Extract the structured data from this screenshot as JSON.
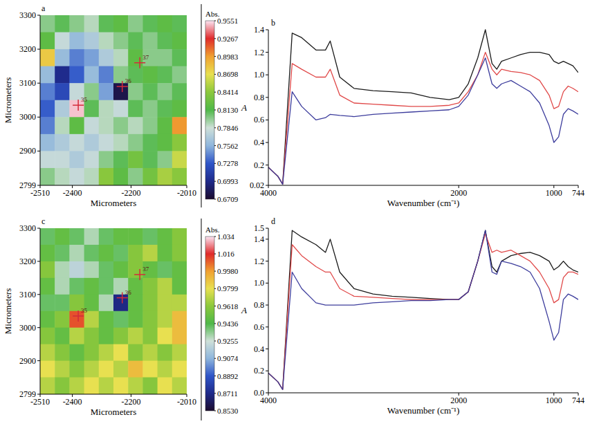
{
  "chart_data": [
    {
      "type": "heatmap",
      "title": "a",
      "xlabel": "Micrometers",
      "ylabel": "Micrometers",
      "xlim": [
        -2510,
        -2010
      ],
      "xticks": [
        -2510,
        -2400,
        -2200,
        -2010
      ],
      "ylim": [
        2799,
        3300
      ],
      "yticks": [
        2799,
        2900,
        3000,
        3100,
        3200,
        3300
      ],
      "x_edges": [
        -2510,
        -2460,
        -2410,
        -2360,
        -2310,
        -2260,
        -2210,
        -2160,
        -2110,
        -2060,
        -2010
      ],
      "y_edges": [
        3300,
        3250,
        3200,
        3150,
        3100,
        3050,
        3000,
        2950,
        2900,
        2850,
        2799
      ],
      "cells": [
        [
          0.8,
          0.81,
          0.8,
          0.79,
          0.81,
          0.82,
          0.8,
          0.81,
          0.82,
          0.81
        ],
        [
          0.82,
          0.78,
          0.76,
          0.77,
          0.79,
          0.8,
          0.81,
          0.8,
          0.81,
          0.82
        ],
        [
          0.88,
          0.76,
          0.74,
          0.75,
          0.77,
          0.79,
          0.82,
          0.8,
          0.8,
          0.81
        ],
        [
          0.76,
          0.7,
          0.73,
          0.76,
          0.74,
          0.8,
          0.81,
          0.82,
          0.81,
          0.8
        ],
        [
          0.74,
          0.72,
          0.78,
          0.8,
          0.75,
          0.68,
          0.8,
          0.81,
          0.8,
          0.81
        ],
        [
          0.73,
          0.77,
          0.95,
          0.81,
          0.79,
          0.78,
          0.81,
          0.8,
          0.81,
          0.82
        ],
        [
          0.74,
          0.79,
          0.82,
          0.78,
          0.79,
          0.8,
          0.79,
          0.8,
          0.82,
          0.9
        ],
        [
          0.76,
          0.77,
          0.78,
          0.77,
          0.78,
          0.79,
          0.8,
          0.81,
          0.82,
          0.84
        ],
        [
          0.78,
          0.78,
          0.77,
          0.78,
          0.8,
          0.81,
          0.83,
          0.81,
          0.8,
          0.86
        ],
        [
          0.8,
          0.79,
          0.78,
          0.79,
          0.84,
          0.82,
          0.8,
          0.83,
          0.85,
          0.84
        ]
      ],
      "markers": [
        {
          "label": "35",
          "x": -2380,
          "y": 3035
        },
        {
          "label": "36",
          "x": -2230,
          "y": 3090
        },
        {
          "label": "37",
          "x": -2170,
          "y": 3160
        }
      ],
      "colorbar": {
        "title": "Abs.",
        "range": [
          0.6709,
          0.9551
        ],
        "ticks": [
          0.6709,
          0.6993,
          0.7278,
          0.7562,
          0.7846,
          {
            "value": 0.813,
            "label": "0.8130"
          },
          0.8414,
          0.8698,
          0.8983,
          0.9267,
          0.9551
        ],
        "colors": [
          "#1c0c2e",
          "#1f2a8a",
          "#2f55c8",
          "#8fb6dc",
          "#cfe0d8",
          "#4fb848",
          "#8cc83c",
          "#e8e050",
          "#f0a030",
          "#e02a2a",
          "#fbe4f2"
        ]
      }
    },
    {
      "type": "line",
      "title": "b",
      "xlabel": "Wavenumber (cm⁻¹)",
      "ylabel": "A",
      "xlim": [
        4000,
        744
      ],
      "xticks": [
        4000,
        2000,
        1000,
        744
      ],
      "ylim": [
        0.02,
        1.4
      ],
      "yticks": [
        0.02,
        0.2,
        0.4,
        0.6,
        0.8,
        {
          "value": 1,
          "label": "1.0"
        },
        1.2,
        1.4
      ],
      "x": [
        4000,
        3900,
        3850,
        3750,
        3650,
        3500,
        3400,
        3350,
        3250,
        3100,
        2900,
        2700,
        2500,
        2300,
        2100,
        2000,
        1900,
        1800,
        1720,
        1650,
        1600,
        1550,
        1450,
        1350,
        1250,
        1150,
        1050,
        1000,
        950,
        900,
        850,
        800,
        744
      ],
      "series": [
        {
          "color": "#1a1a1a",
          "values": [
            0.18,
            0.1,
            0.03,
            1.37,
            1.33,
            1.22,
            1.22,
            1.3,
            0.98,
            0.88,
            0.86,
            0.85,
            0.84,
            0.8,
            0.78,
            0.8,
            0.92,
            1.15,
            1.4,
            1.1,
            1.05,
            1.12,
            1.15,
            1.18,
            1.2,
            1.2,
            1.18,
            1.12,
            1.1,
            1.12,
            1.1,
            1.08,
            1.02
          ]
        },
        {
          "color": "#e04848",
          "values": [
            0.18,
            0.1,
            0.03,
            1.1,
            1.05,
            0.98,
            0.98,
            1.05,
            0.82,
            0.75,
            0.74,
            0.73,
            0.72,
            0.72,
            0.73,
            0.75,
            0.85,
            1.0,
            1.2,
            1.05,
            1.0,
            1.05,
            1.03,
            1.02,
            1.0,
            0.95,
            0.82,
            0.7,
            0.72,
            0.85,
            0.9,
            0.88,
            0.85
          ]
        },
        {
          "color": "#3c3c9c",
          "values": [
            0.18,
            0.1,
            0.03,
            0.85,
            0.72,
            0.6,
            0.62,
            0.65,
            0.64,
            0.63,
            0.65,
            0.66,
            0.67,
            0.68,
            0.69,
            0.72,
            0.82,
            1.0,
            1.15,
            0.92,
            0.88,
            0.92,
            0.95,
            0.9,
            0.85,
            0.75,
            0.55,
            0.4,
            0.45,
            0.65,
            0.7,
            0.68,
            0.65
          ]
        }
      ]
    },
    {
      "type": "heatmap",
      "title": "c",
      "xlabel": "Micrometers",
      "ylabel": "Micrometers",
      "xlim": [
        -2510,
        -2010
      ],
      "xticks": [
        -2510,
        -2400,
        -2200,
        -2010
      ],
      "ylim": [
        2799,
        3300
      ],
      "yticks": [
        2799,
        2900,
        3000,
        3100,
        3200,
        3300
      ],
      "x_edges": [
        -2510,
        -2460,
        -2410,
        -2360,
        -2310,
        -2260,
        -2210,
        -2160,
        -2110,
        -2060,
        -2010
      ],
      "y_edges": [
        3300,
        3250,
        3200,
        3150,
        3100,
        3050,
        3000,
        2950,
        2900,
        2850,
        2799
      ],
      "cells": [
        [
          0.94,
          0.95,
          0.94,
          0.93,
          0.94,
          0.95,
          0.95,
          0.94,
          0.95,
          0.96
        ],
        [
          0.95,
          0.94,
          0.93,
          0.94,
          0.95,
          0.94,
          0.96,
          0.97,
          0.95,
          0.96
        ],
        [
          0.96,
          0.93,
          0.92,
          0.93,
          0.94,
          0.95,
          0.96,
          0.95,
          0.94,
          0.95
        ],
        [
          0.95,
          0.93,
          0.94,
          0.95,
          0.94,
          0.93,
          0.95,
          0.96,
          0.97,
          0.95
        ],
        [
          0.94,
          0.94,
          0.96,
          0.95,
          0.93,
          0.87,
          0.95,
          0.96,
          0.97,
          0.97
        ],
        [
          0.95,
          0.96,
          1.01,
          0.97,
          0.95,
          0.94,
          0.95,
          0.96,
          0.97,
          0.99
        ],
        [
          0.96,
          0.95,
          0.97,
          0.96,
          0.95,
          0.96,
          0.97,
          0.96,
          0.98,
          0.99
        ],
        [
          0.97,
          0.96,
          0.95,
          0.96,
          0.97,
          0.98,
          0.96,
          0.97,
          0.96,
          0.97
        ],
        [
          0.98,
          0.97,
          0.96,
          0.97,
          0.98,
          0.97,
          0.99,
          0.98,
          0.97,
          0.98
        ],
        [
          0.97,
          0.96,
          0.97,
          0.98,
          0.97,
          0.98,
          0.97,
          0.96,
          0.98,
          0.97
        ]
      ],
      "markers": [
        {
          "label": "35",
          "x": -2380,
          "y": 3035
        },
        {
          "label": "36",
          "x": -2230,
          "y": 3090
        },
        {
          "label": "37",
          "x": -2170,
          "y": 3160
        }
      ],
      "colorbar": {
        "title": "Abs.",
        "range": [
          0.853,
          1.034
        ],
        "ticks": [
          {
            "value": 0.853,
            "label": "0.8530"
          },
          0.8711,
          0.8892,
          0.9074,
          0.9255,
          0.9436,
          0.9618,
          0.9799,
          {
            "value": 0.998,
            "label": "0.9980"
          },
          1.016,
          1.034
        ],
        "colors": [
          "#1c0c2e",
          "#1f2a8a",
          "#2f55c8",
          "#8fb6dc",
          "#cfe0d8",
          "#4fb848",
          "#8cc83c",
          "#e8e050",
          "#f0a030",
          "#e02a2a",
          "#fbe4f2"
        ]
      }
    },
    {
      "type": "line",
      "title": "d",
      "xlabel": "Wavenumber (cm⁻¹)",
      "ylabel": "A",
      "xlim": [
        4000,
        744
      ],
      "xticks": [
        4000,
        2000,
        1000,
        744
      ],
      "ylim": [
        0,
        1.5
      ],
      "yticks": [
        {
          "value": 0,
          "label": "0.0"
        },
        0.2,
        0.4,
        0.6,
        0.8,
        {
          "value": 1,
          "label": "1.0"
        },
        1.2,
        1.4,
        1.5
      ],
      "x": [
        4000,
        3900,
        3850,
        3750,
        3650,
        3500,
        3400,
        3350,
        3250,
        3100,
        2900,
        2700,
        2500,
        2300,
        2100,
        2000,
        1900,
        1800,
        1720,
        1650,
        1600,
        1550,
        1450,
        1350,
        1250,
        1150,
        1050,
        1000,
        950,
        900,
        850,
        800,
        744
      ],
      "series": [
        {
          "color": "#1a1a1a",
          "values": [
            0.18,
            0.1,
            0.03,
            1.48,
            1.42,
            1.35,
            1.28,
            1.4,
            1.1,
            0.95,
            0.9,
            0.88,
            0.87,
            0.86,
            0.85,
            0.85,
            0.92,
            1.2,
            1.48,
            1.15,
            1.1,
            1.2,
            1.25,
            1.27,
            1.28,
            1.25,
            1.2,
            1.12,
            1.15,
            1.2,
            1.15,
            1.12,
            1.1
          ]
        },
        {
          "color": "#e04848",
          "values": [
            0.18,
            0.1,
            0.03,
            1.35,
            1.25,
            1.15,
            1.1,
            1.1,
            0.95,
            0.88,
            0.87,
            0.86,
            0.85,
            0.85,
            0.85,
            0.85,
            0.92,
            1.2,
            1.45,
            1.28,
            1.3,
            1.28,
            1.3,
            1.25,
            1.2,
            1.1,
            0.95,
            0.82,
            0.85,
            1.05,
            1.1,
            1.1,
            1.08
          ]
        },
        {
          "color": "#3c3c9c",
          "values": [
            0.18,
            0.1,
            0.03,
            1.1,
            0.95,
            0.82,
            0.8,
            0.8,
            0.8,
            0.8,
            0.82,
            0.83,
            0.84,
            0.84,
            0.85,
            0.85,
            0.92,
            1.2,
            1.48,
            1.1,
            1.08,
            1.2,
            1.18,
            1.15,
            1.1,
            0.95,
            0.65,
            0.48,
            0.55,
            0.85,
            0.9,
            0.88,
            0.85
          ]
        }
      ]
    }
  ]
}
